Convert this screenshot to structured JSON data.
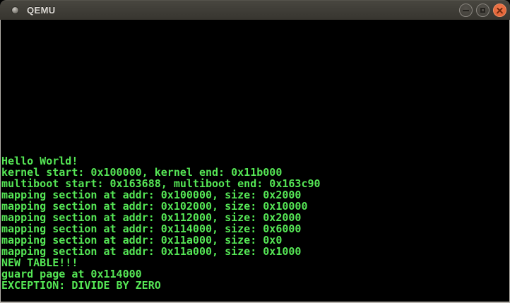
{
  "window": {
    "title": "QEMU",
    "controls": {
      "minimize": "minimize",
      "maximize": "maximize",
      "close": "close"
    },
    "titlebar_color": "#403e38",
    "close_button_color": "#e2653a",
    "border_color": "#b5b1ab"
  },
  "terminal": {
    "background": "#000000",
    "text_color": "#55e655",
    "lines": [
      "Hello World!",
      "kernel start: 0x100000, kernel end: 0x11b000",
      "multiboot start: 0x163688, multiboot end: 0x163c90",
      "mapping section at addr: 0x100000, size: 0x2000",
      "mapping section at addr: 0x102000, size: 0x10000",
      "mapping section at addr: 0x112000, size: 0x2000",
      "mapping section at addr: 0x114000, size: 0x6000",
      "mapping section at addr: 0x11a000, size: 0x0",
      "mapping section at addr: 0x11a000, size: 0x1000",
      "NEW TABLE!!!",
      "guard page at 0x114000",
      "EXCEPTION: DIVIDE BY ZERO"
    ]
  }
}
